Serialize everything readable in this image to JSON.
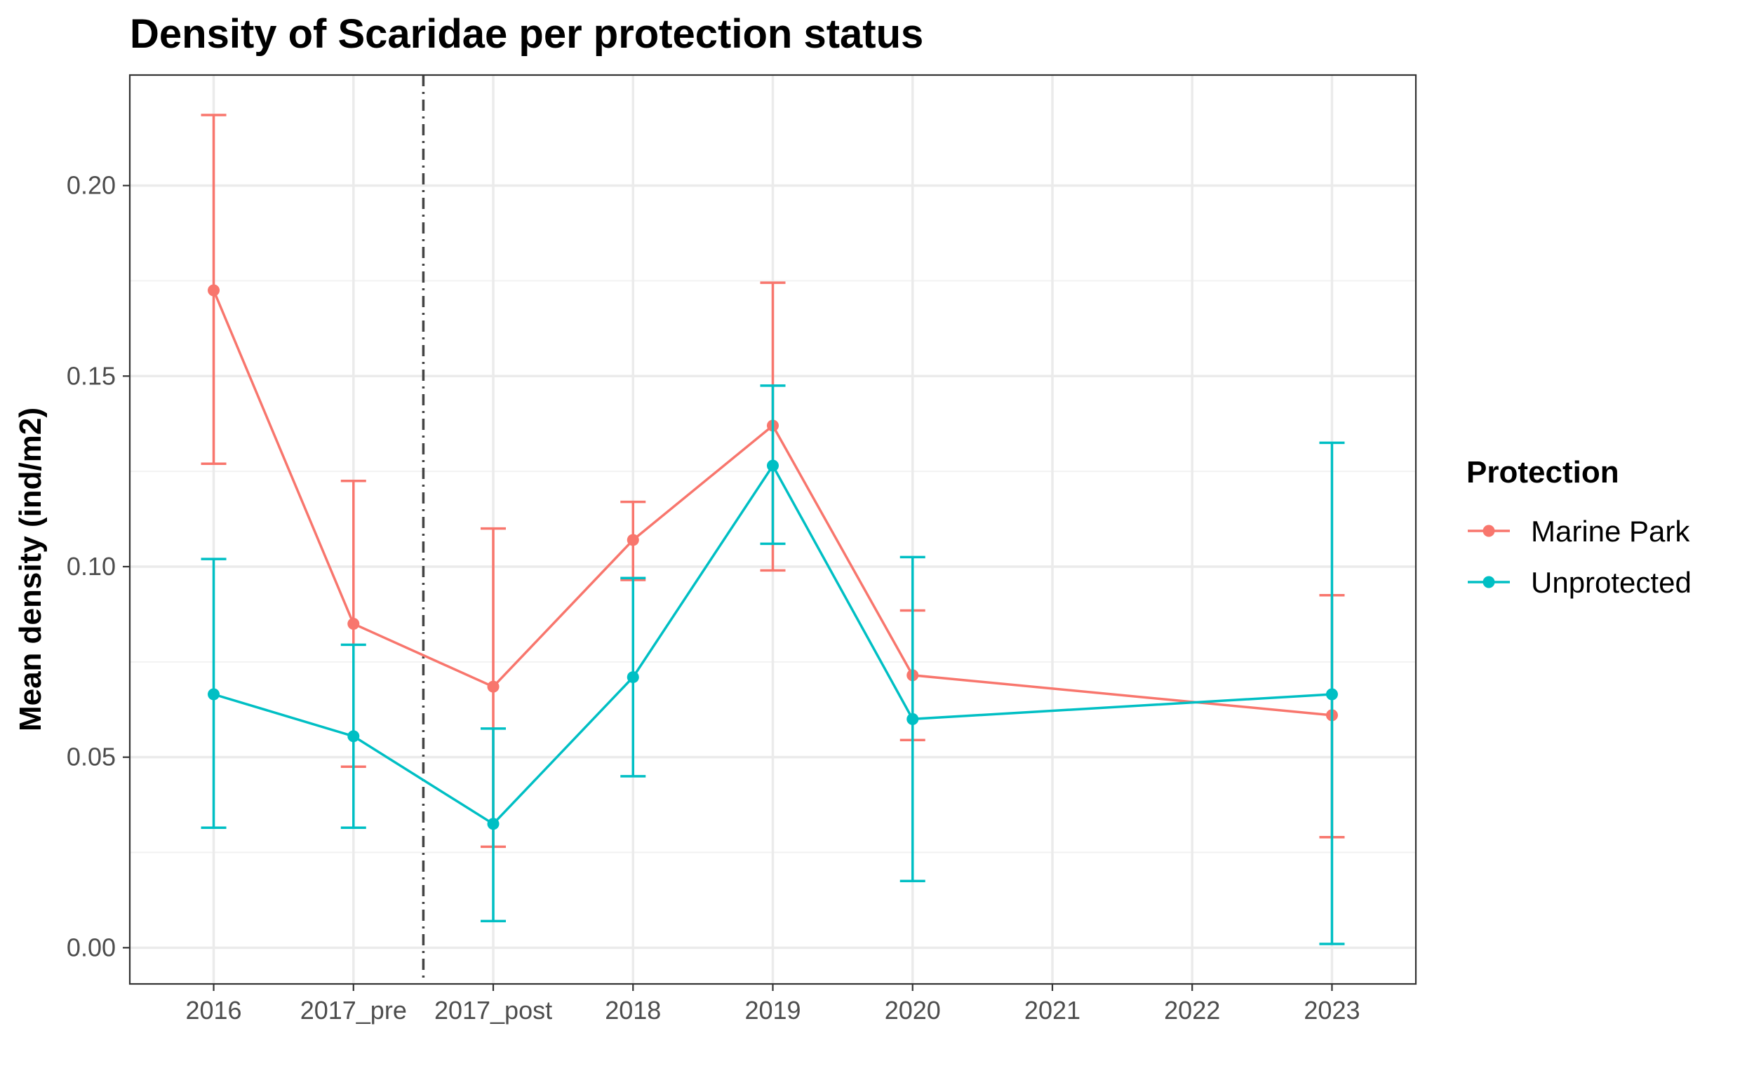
{
  "chart_data": {
    "type": "line",
    "title": "Density of Scaridae per protection status",
    "xlabel": "",
    "ylabel": "Mean density (ind/m2)",
    "categories": [
      "2016",
      "2017_pre",
      "2017_post",
      "2018",
      "2019",
      "2020",
      "2021",
      "2022",
      "2023"
    ],
    "ylim": [
      -0.0095,
      0.229
    ],
    "yticks": [
      "0.00",
      "0.05",
      "0.10",
      "0.15",
      "0.20"
    ],
    "ytick_values": [
      0.0,
      0.05,
      0.1,
      0.15,
      0.2
    ],
    "grid": true,
    "vline_between": [
      "2017_pre",
      "2017_post"
    ],
    "legend": {
      "title": "Protection",
      "position": "right"
    },
    "series": [
      {
        "name": "Marine Park",
        "color": "#F8766D",
        "points": [
          {
            "x": "2016",
            "y": 0.1725,
            "ymin": 0.127,
            "ymax": 0.2185
          },
          {
            "x": "2017_pre",
            "y": 0.085,
            "ymin": 0.0475,
            "ymax": 0.1225
          },
          {
            "x": "2017_post",
            "y": 0.0685,
            "ymin": 0.0265,
            "ymax": 0.11
          },
          {
            "x": "2018",
            "y": 0.107,
            "ymin": 0.0965,
            "ymax": 0.117
          },
          {
            "x": "2019",
            "y": 0.137,
            "ymin": 0.099,
            "ymax": 0.1745
          },
          {
            "x": "2020",
            "y": 0.0715,
            "ymin": 0.0545,
            "ymax": 0.0885
          },
          {
            "x": "2023",
            "y": 0.061,
            "ymin": 0.029,
            "ymax": 0.0925
          }
        ]
      },
      {
        "name": "Unprotected",
        "color": "#00BFC4",
        "points": [
          {
            "x": "2016",
            "y": 0.0665,
            "ymin": 0.0315,
            "ymax": 0.102
          },
          {
            "x": "2017_pre",
            "y": 0.0555,
            "ymin": 0.0315,
            "ymax": 0.0795
          },
          {
            "x": "2017_post",
            "y": 0.0325,
            "ymin": 0.007,
            "ymax": 0.0575
          },
          {
            "x": "2018",
            "y": 0.071,
            "ymin": 0.045,
            "ymax": 0.097
          },
          {
            "x": "2019",
            "y": 0.1265,
            "ymin": 0.106,
            "ymax": 0.1475
          },
          {
            "x": "2020",
            "y": 0.06,
            "ymin": 0.0175,
            "ymax": 0.1025
          },
          {
            "x": "2023",
            "y": 0.0665,
            "ymin": 0.001,
            "ymax": 0.1325
          }
        ]
      }
    ]
  }
}
